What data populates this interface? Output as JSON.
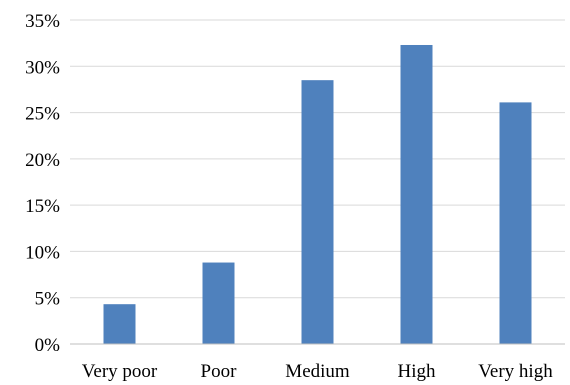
{
  "chart_data": {
    "type": "bar",
    "categories": [
      "Very poor",
      "Poor",
      "Medium",
      "High",
      "Very high"
    ],
    "values": [
      4.3,
      8.8,
      28.5,
      32.3,
      26.1
    ],
    "ylim": [
      0,
      35
    ],
    "y_ticks": [
      0,
      5,
      10,
      15,
      20,
      25,
      30,
      35
    ],
    "y_tick_labels": [
      "0%",
      "5%",
      "10%",
      "15%",
      "20%",
      "25%",
      "30%",
      "35%"
    ],
    "grid": true,
    "legend": "none",
    "bar_color": "#4f81bd",
    "grid_color": "#d9d9d9"
  }
}
